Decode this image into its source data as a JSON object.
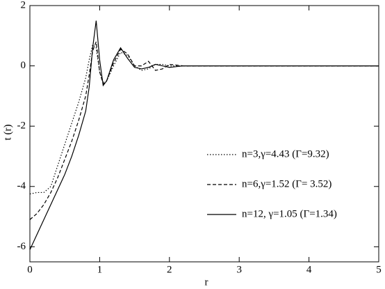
{
  "chart_data": {
    "type": "line",
    "x_label": "r",
    "y_label": "t (r)",
    "x": [
      0,
      0.1,
      0.2,
      0.3,
      0.4,
      0.5,
      0.6,
      0.7,
      0.8,
      0.85,
      0.9,
      0.95,
      1.0,
      1.05,
      1.1,
      1.2,
      1.3,
      1.4,
      1.5,
      1.6,
      1.7,
      1.8,
      1.9,
      2.0,
      2.2,
      2.5,
      3,
      4,
      5
    ],
    "series": [
      {
        "name": "n=3,γ=4.43 (Γ=9.32)",
        "color": "#000000",
        "dash": "dotted",
        "values": [
          -4.25,
          -4.2,
          -4.2,
          -4.0,
          -3.3,
          -2.6,
          -1.9,
          -1.2,
          -0.4,
          0.2,
          0.7,
          0.6,
          -0.2,
          -0.55,
          -0.5,
          0.0,
          0.45,
          0.35,
          0.0,
          -0.15,
          -0.1,
          0.05,
          0.05,
          0.0,
          0.0,
          0.0,
          0.0,
          0.0,
          0.0
        ]
      },
      {
        "name": "n=6,γ=1.52 (Γ= 3.52)",
        "color": "#000000",
        "dash": "dashed",
        "values": [
          -5.1,
          -4.9,
          -4.6,
          -4.2,
          -3.7,
          -3.1,
          -2.5,
          -1.8,
          -1.0,
          -0.3,
          0.5,
          0.8,
          -0.2,
          -0.6,
          -0.5,
          0.1,
          0.55,
          0.4,
          0.0,
          0.0,
          0.15,
          -0.15,
          -0.1,
          0.05,
          0.0,
          0.0,
          0.0,
          0.0,
          0.0
        ]
      },
      {
        "name": "n=12, γ=1.05 (Γ=1.34)",
        "color": "#000000",
        "dash": "solid",
        "values": [
          -6.1,
          -5.6,
          -5.1,
          -4.6,
          -4.1,
          -3.6,
          -3.0,
          -2.3,
          -1.5,
          -0.7,
          0.6,
          1.5,
          0.2,
          -0.65,
          -0.5,
          0.2,
          0.6,
          0.25,
          -0.05,
          -0.1,
          -0.05,
          0.05,
          0.0,
          -0.05,
          0.0,
          0.0,
          0.0,
          0.0,
          0.0
        ]
      }
    ],
    "xlim": [
      0,
      5
    ],
    "xticks": [
      0,
      1,
      2,
      3,
      4,
      5
    ],
    "ylim": [
      -6.5,
      2
    ],
    "yticks": [
      -6,
      -4,
      -2,
      0,
      2
    ]
  }
}
